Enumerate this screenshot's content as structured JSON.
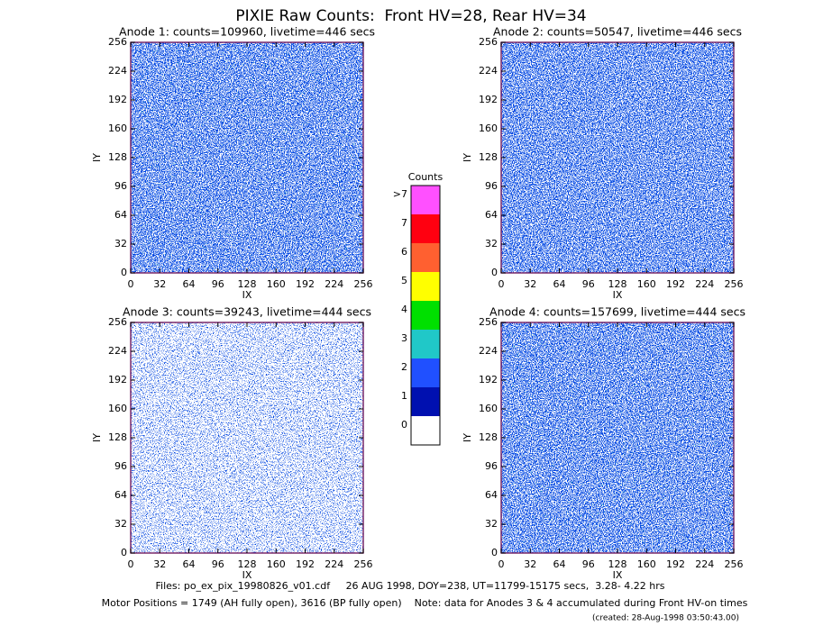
{
  "title": "PIXIE Raw Counts:  Front HV=28, Rear HV=34",
  "chart_data": [
    {
      "type": "heatmap",
      "title": "Anode 1: counts=109960, livetime=446 secs",
      "x_label": "IX",
      "y_label": "IY",
      "xlim": [
        0,
        256
      ],
      "ylim": [
        0,
        256
      ],
      "xticks": [
        0,
        32,
        64,
        96,
        128,
        160,
        192,
        224,
        256
      ],
      "yticks": [
        0,
        32,
        64,
        96,
        128,
        160,
        192,
        224,
        256
      ]
    },
    {
      "type": "heatmap",
      "title": "Anode 2: counts=50547, livetime=446 secs",
      "x_label": "IX",
      "y_label": "IY",
      "xlim": [
        0,
        256
      ],
      "ylim": [
        0,
        256
      ],
      "xticks": [
        0,
        32,
        64,
        96,
        128,
        160,
        192,
        224,
        256
      ],
      "yticks": [
        0,
        32,
        64,
        96,
        128,
        160,
        192,
        224,
        256
      ]
    },
    {
      "type": "heatmap",
      "title": "Anode 3: counts=39243, livetime=444 secs",
      "x_label": "IX",
      "y_label": "IY",
      "xlim": [
        0,
        256
      ],
      "ylim": [
        0,
        256
      ],
      "xticks": [
        0,
        32,
        64,
        96,
        128,
        160,
        192,
        224,
        256
      ],
      "yticks": [
        0,
        32,
        64,
        96,
        128,
        160,
        192,
        224,
        256
      ]
    },
    {
      "type": "heatmap",
      "title": "Anode 4: counts=157699, livetime=444 secs",
      "x_label": "IX",
      "y_label": "IY",
      "xlim": [
        0,
        256
      ],
      "ylim": [
        0,
        256
      ],
      "xticks": [
        0,
        32,
        64,
        96,
        128,
        160,
        192,
        224,
        256
      ],
      "yticks": [
        0,
        32,
        64,
        96,
        128,
        160,
        192,
        224,
        256
      ]
    }
  ],
  "colorbar": {
    "title": "Counts",
    "levels": [
      0,
      1,
      2,
      3,
      4,
      5,
      6,
      7
    ],
    "top_label": ">7",
    "colors": [
      "#ffffff",
      "#0010b0",
      "#2050ff",
      "#20c8c8",
      "#00e000",
      "#ffff00",
      "#ff6030",
      "#ff0010",
      "#ff50ff"
    ]
  },
  "footer": [
    "Files: po_ex_pix_19980826_v01.cdf     26 AUG 1998, DOY=238, UT=11799-15175 secs,  3.28- 4.22 hrs",
    "Motor Positions = 1749 (AH fully open), 3616 (BP fully open)    Note: data for Anodes 3 & 4 accumulated during Front HV-on times",
    "(created: 28-Aug-1998 03:50:43.00)"
  ]
}
